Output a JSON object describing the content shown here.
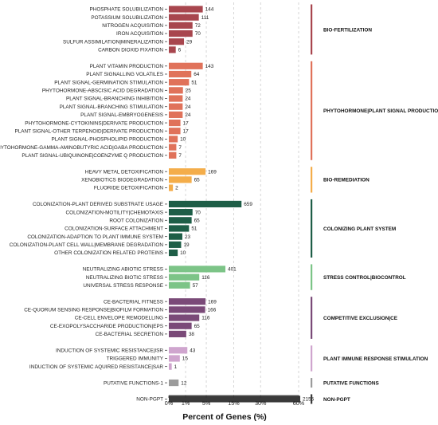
{
  "chart_data": {
    "type": "bar",
    "orientation": "horizontal",
    "xlabel": "Percent of Genes (%)",
    "x_scale": "sqrt",
    "xlim": [
      0,
      72
    ],
    "x_ticks": [
      {
        "value": 0,
        "label": "0%"
      },
      {
        "value": 1,
        "label": "1%"
      },
      {
        "value": 5,
        "label": "5%"
      },
      {
        "value": 15,
        "label": "15%"
      },
      {
        "value": 30,
        "label": "30%"
      },
      {
        "value": 60,
        "label": "60%"
      }
    ],
    "grid": true,
    "note": "Bar lengths are estimated percent of genes; printed numbers are gene counts.",
    "groups": [
      {
        "name": "BIO-FERTILIZATION",
        "color": "#a8464e",
        "items": [
          {
            "label": "PHOSPHATE SOLUBILIZATION",
            "count": 144,
            "percent": 4.1
          },
          {
            "label": "POTASSIUM SOLUBILIZATION",
            "count": 111,
            "percent": 3.2
          },
          {
            "label": "NITROGEN ACQUISITION",
            "count": 72,
            "percent": 2.0
          },
          {
            "label": "IRON ACQUISITION",
            "count": 70,
            "percent": 2.0
          },
          {
            "label": "SULFUR ASSIMILATION|MINERALIZATION",
            "count": 29,
            "percent": 0.82
          },
          {
            "label": "CARBON DIOXID FIXATION",
            "count": 6,
            "percent": 0.17
          }
        ]
      },
      {
        "name": "PHYTOHORMONE|PLANT SIGNAL PRODUCTION",
        "color": "#e0725a",
        "items": [
          {
            "label": "PLANT VITAMIN PRODUCTION",
            "count": 143,
            "percent": 4.1
          },
          {
            "label": "PLANT SIGNALLING VOLATILES",
            "count": 64,
            "percent": 1.8
          },
          {
            "label": "PLANT SIGNAL-GERMINATION STIMULATION",
            "count": 51,
            "percent": 1.45
          },
          {
            "label": "PHYTOHORMONE-ABSCISIC ACID DEGRADATION",
            "count": 25,
            "percent": 0.71
          },
          {
            "label": "PLANT SIGNAL-BRANCHING INHIBITION",
            "count": 24,
            "percent": 0.68
          },
          {
            "label": "PLANT SIGNAL-BRANCHING STIMULATION",
            "count": 24,
            "percent": 0.68
          },
          {
            "label": "PLANT SIGNAL-EMBRYOGENESIS",
            "count": 24,
            "percent": 0.68
          },
          {
            "label": "PHYTOHORMONE-CYTOKININS|DERIVATE PRODUCTION",
            "count": 17,
            "percent": 0.48
          },
          {
            "label": "PLANT SIGNAL-OTHER TERPENOID|DERIVATE PRODUCTION",
            "count": 17,
            "percent": 0.48
          },
          {
            "label": "PLANT SIGNAL-PHOSPHOLIPID PRODUCTION",
            "count": 10,
            "percent": 0.28
          },
          {
            "label": "PHYTOHORMONE-GAMMA-AMINOBUTYRIC ACID|GABA PRODUCTION",
            "count": 7,
            "percent": 0.2
          },
          {
            "label": "PLANT SIGNAL-UBIQUINONE|COENZYME Q PRODUCTION",
            "count": 7,
            "percent": 0.2
          }
        ]
      },
      {
        "name": "BIO-REMEDIATION",
        "color": "#f4ad4a",
        "items": [
          {
            "label": "HEAVY METAL DETOXIFICATION",
            "count": 169,
            "percent": 4.8
          },
          {
            "label": "XENOBIOTICS BIODEGRADATION",
            "count": 65,
            "percent": 1.85
          },
          {
            "label": "FLUORIDE DETOXIFICATION",
            "count": 2,
            "percent": 0.06
          }
        ]
      },
      {
        "name": "COLONIZING PLANT SYSTEM",
        "color": "#1e5e47",
        "items": [
          {
            "label": "COLONIZATION-PLANT DERIVED SUBSTRATE USAGE",
            "count": 659,
            "percent": 18.8
          },
          {
            "label": "COLONIZATION-MOTILITY|CHEMOTAXIS",
            "count": 70,
            "percent": 2.0
          },
          {
            "label": "ROOT COLONIZATION",
            "count": 65,
            "percent": 1.85
          },
          {
            "label": "COLONIZATION-SURFACE ATTACHMENT",
            "count": 51,
            "percent": 1.45
          },
          {
            "label": "COLONIZATION-ADAPTION TO PLANT IMMUNE SYSTEM",
            "count": 23,
            "percent": 0.65
          },
          {
            "label": "COLONIZATION-PLANT CELL WALL|MEMBRANE DEGRADATION",
            "count": 19,
            "percent": 0.54
          },
          {
            "label": "OTHER COLONIZATION RELATED PROTEINS",
            "count": 10,
            "percent": 0.28
          }
        ]
      },
      {
        "name": "STRESS CONTROL|BIOCONTROL",
        "color": "#7cc487",
        "items": [
          {
            "label": "NEUTRALIZING ABIOTIC STRESS",
            "count": 401,
            "percent": 11.4
          },
          {
            "label": "NEUTRALIZING BIOTIC STRESS",
            "count": 116,
            "percent": 3.3
          },
          {
            "label": "UNIVERSAL STRESS RESPONSE",
            "count": 57,
            "percent": 1.6
          }
        ]
      },
      {
        "name": "COMPETITIVE EXCLUSION|CE",
        "color": "#7a4a78",
        "items": [
          {
            "label": "CE-BACTERIAL FITNESS",
            "count": 169,
            "percent": 4.8
          },
          {
            "label": "CE-QUORUM SENSING RESPONSE|BIOFILM FORMATION",
            "count": 166,
            "percent": 4.7
          },
          {
            "label": "CE-CELL ENVELOPE REMODELLING",
            "count": 116,
            "percent": 3.3
          },
          {
            "label": "CE-EXOPOLYSACCHARIDE PRODUCTION|EPS",
            "count": 65,
            "percent": 1.85
          },
          {
            "label": "CE-BACTERIAL SECRETION",
            "count": 38,
            "percent": 1.08
          }
        ]
      },
      {
        "name": "PLANT IMMUNE RESPONSE STIMULATION",
        "color": "#cfa5ce",
        "items": [
          {
            "label": "INDUCTION OF SYSTEMIC RESISTANCE|ISR",
            "count": 43,
            "percent": 1.22
          },
          {
            "label": "TRIGGERED IMMUNITY",
            "count": 15,
            "percent": 0.43
          },
          {
            "label": "INDUCTION OF SYSTEMIC AQUIRED RESISTANCE|SAR",
            "count": 1,
            "percent": 0.03
          }
        ]
      },
      {
        "name": "PUTATIVE FUNCTIONS",
        "color": "#9b9b9b",
        "items": [
          {
            "label": "PUTATIVE FUNCTIONS-1",
            "count": 12,
            "percent": 0.34
          }
        ]
      },
      {
        "name": "NON-PGPT",
        "color": "#3a3a3a",
        "items": [
          {
            "label": "NON-PGPT",
            "count": 2155,
            "percent": 61.5
          }
        ]
      }
    ]
  }
}
